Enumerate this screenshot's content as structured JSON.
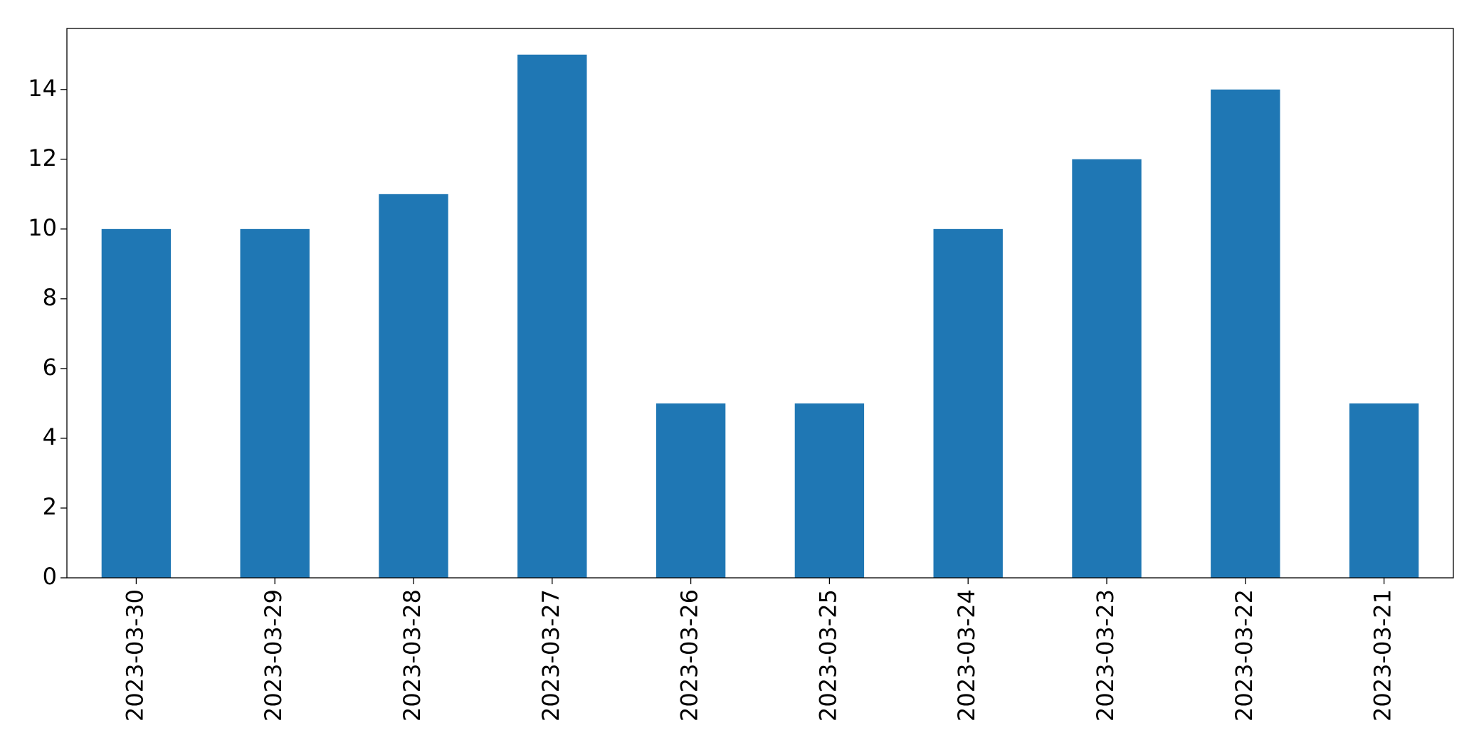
{
  "chart_data": {
    "type": "bar",
    "categories": [
      "2023-03-30",
      "2023-03-29",
      "2023-03-28",
      "2023-03-27",
      "2023-03-26",
      "2023-03-25",
      "2023-03-24",
      "2023-03-23",
      "2023-03-22",
      "2023-03-21"
    ],
    "values": [
      10,
      10,
      11,
      15,
      5,
      5,
      10,
      12,
      14,
      5
    ],
    "color": "#1f77b4",
    "ylim": [
      0,
      15.75
    ],
    "yticks": [
      0,
      2,
      4,
      6,
      8,
      10,
      12,
      14
    ],
    "grid": false
  }
}
